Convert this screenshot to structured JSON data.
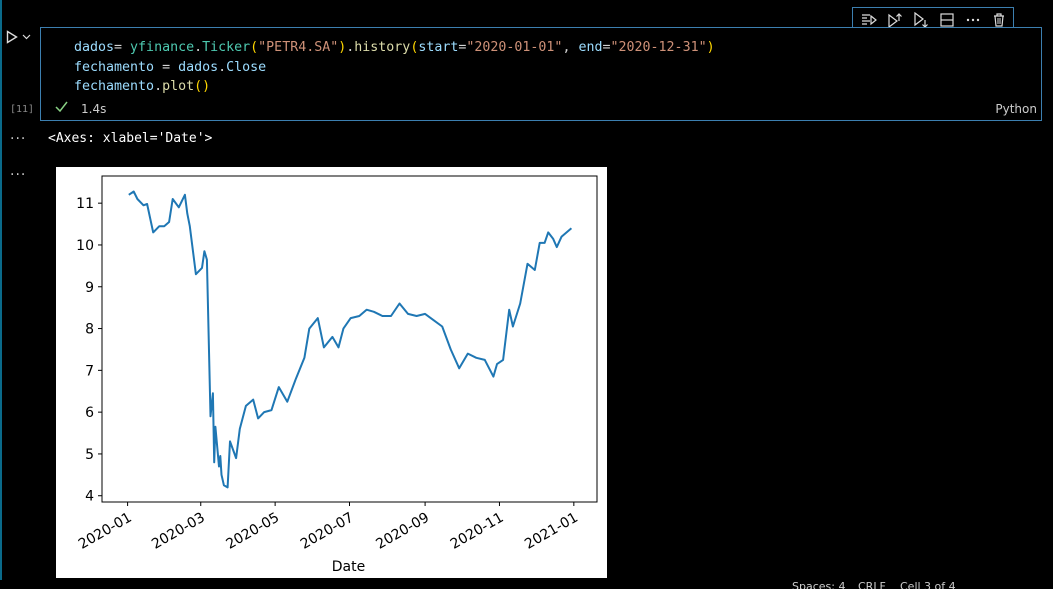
{
  "cell": {
    "execution_count": "[11]",
    "code_lines": [
      [
        {
          "t": "dados",
          "c": "tk-var"
        },
        {
          "t": "= ",
          "c": "tk-op"
        },
        {
          "t": "yfinance",
          "c": "tk-mod"
        },
        {
          "t": ".",
          "c": "tk-op"
        },
        {
          "t": "Ticker",
          "c": "tk-mod"
        },
        {
          "t": "(",
          "c": "tk-paren"
        },
        {
          "t": "\"PETR4.SA\"",
          "c": "tk-str"
        },
        {
          "t": ")",
          "c": "tk-paren"
        },
        {
          "t": ".",
          "c": "tk-op"
        },
        {
          "t": "history",
          "c": "tk-func"
        },
        {
          "t": "(",
          "c": "tk-paren"
        },
        {
          "t": "start",
          "c": "tk-param"
        },
        {
          "t": "=",
          "c": "tk-op"
        },
        {
          "t": "\"2020-01-01\"",
          "c": "tk-str"
        },
        {
          "t": ", ",
          "c": "tk-op"
        },
        {
          "t": "end",
          "c": "tk-param"
        },
        {
          "t": "=",
          "c": "tk-op"
        },
        {
          "t": "\"2020-12-31\"",
          "c": "tk-str"
        },
        {
          "t": ")",
          "c": "tk-paren"
        }
      ],
      [
        {
          "t": "fechamento",
          "c": "tk-var"
        },
        {
          "t": " = ",
          "c": "tk-op"
        },
        {
          "t": "dados",
          "c": "tk-var"
        },
        {
          "t": ".",
          "c": "tk-op"
        },
        {
          "t": "Close",
          "c": "tk-var"
        }
      ],
      [
        {
          "t": "fechamento",
          "c": "tk-var"
        },
        {
          "t": ".",
          "c": "tk-op"
        },
        {
          "t": "plot",
          "c": "tk-func"
        },
        {
          "t": "()",
          "c": "tk-paren"
        }
      ]
    ],
    "exec_time": "1.4s",
    "language": "Python",
    "status_color": "#89d185"
  },
  "toolbar": {
    "icons": [
      "run-by-line-icon",
      "execute-above-icon",
      "execute-below-icon",
      "split-cell-icon",
      "more-icon",
      "delete-icon"
    ]
  },
  "output": {
    "text": "<Axes: xlabel='Date'>"
  },
  "statusbar": {
    "items": [
      "Spaces: 4",
      "CRLF",
      "Cell 3 of 4"
    ]
  },
  "chart_data": {
    "type": "line",
    "xlabel": "Date",
    "ylabel": "",
    "x_type": "date",
    "xlim": [
      "2019-12-11",
      "2021-01-20"
    ],
    "ylim": [
      3.85,
      11.65
    ],
    "yticks": [
      4,
      5,
      6,
      7,
      8,
      9,
      10,
      11
    ],
    "xticks": [
      "2020-01",
      "2020-03",
      "2020-05",
      "2020-07",
      "2020-09",
      "2020-11",
      "2021-01"
    ],
    "line_color": "#1f77b4",
    "grid": false,
    "series": [
      {
        "x": [
          "2020-01-02",
          "2020-01-06",
          "2020-01-09",
          "2020-01-14",
          "2020-01-17",
          "2020-01-22",
          "2020-01-27",
          "2020-01-31",
          "2020-02-04",
          "2020-02-07",
          "2020-02-12",
          "2020-02-17",
          "2020-02-19",
          "2020-02-21",
          "2020-02-26",
          "2020-03-02",
          "2020-03-04",
          "2020-03-06",
          "2020-03-09",
          "2020-03-11",
          "2020-03-12",
          "2020-03-13",
          "2020-03-16",
          "2020-03-17",
          "2020-03-18",
          "2020-03-20",
          "2020-03-23",
          "2020-03-25",
          "2020-03-30",
          "2020-04-02",
          "2020-04-07",
          "2020-04-13",
          "2020-04-17",
          "2020-04-22",
          "2020-04-28",
          "2020-05-04",
          "2020-05-11",
          "2020-05-18",
          "2020-05-25",
          "2020-05-29",
          "2020-06-05",
          "2020-06-10",
          "2020-06-17",
          "2020-06-22",
          "2020-06-26",
          "2020-07-02",
          "2020-07-09",
          "2020-07-15",
          "2020-07-21",
          "2020-07-28",
          "2020-08-04",
          "2020-08-11",
          "2020-08-18",
          "2020-08-25",
          "2020-09-01",
          "2020-09-08",
          "2020-09-15",
          "2020-09-22",
          "2020-09-29",
          "2020-10-06",
          "2020-10-13",
          "2020-10-20",
          "2020-10-27",
          "2020-10-30",
          "2020-11-04",
          "2020-11-09",
          "2020-11-12",
          "2020-11-18",
          "2020-11-24",
          "2020-11-30",
          "2020-12-04",
          "2020-12-08",
          "2020-12-11",
          "2020-12-15",
          "2020-12-18",
          "2020-12-22",
          "2020-12-30"
        ],
        "y": [
          11.2,
          11.28,
          11.1,
          10.95,
          10.98,
          10.3,
          10.45,
          10.45,
          10.55,
          11.1,
          10.9,
          11.2,
          10.75,
          10.45,
          9.3,
          9.45,
          9.85,
          9.65,
          5.9,
          6.45,
          4.8,
          5.65,
          4.7,
          4.95,
          4.5,
          4.25,
          4.2,
          5.3,
          4.9,
          5.6,
          6.15,
          6.3,
          5.85,
          6.0,
          6.05,
          6.6,
          6.25,
          6.8,
          7.3,
          8.0,
          8.25,
          7.55,
          7.8,
          7.55,
          8.0,
          8.25,
          8.3,
          8.45,
          8.4,
          8.3,
          8.3,
          8.6,
          8.35,
          8.3,
          8.35,
          8.2,
          8.05,
          7.5,
          7.05,
          7.4,
          7.3,
          7.25,
          6.85,
          7.15,
          7.25,
          8.45,
          8.05,
          8.6,
          9.55,
          9.4,
          10.05,
          10.05,
          10.3,
          10.15,
          9.95,
          10.2,
          10.4
        ]
      }
    ]
  }
}
